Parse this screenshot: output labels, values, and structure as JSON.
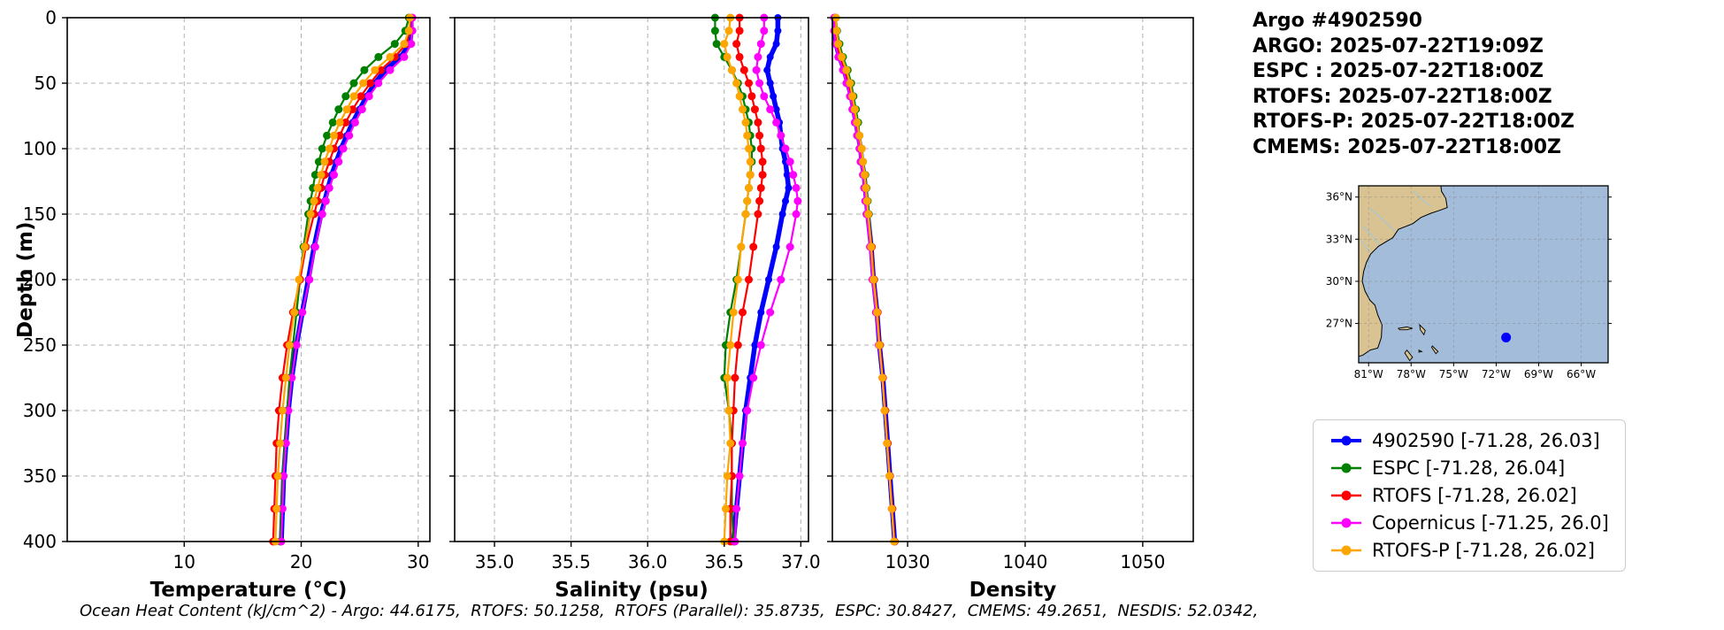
{
  "header": {
    "title": "Argo #4902590",
    "lines": [
      "ARGO: 2025-07-22T19:09Z",
      "ESPC : 2025-07-22T18:00Z",
      "RTOFS: 2025-07-22T18:00Z",
      "RTOFS-P: 2025-07-22T18:00Z",
      "CMEMS: 2025-07-22T18:00Z"
    ]
  },
  "footer": {
    "text": "Ocean Heat Content (kJ/cm^2) - Argo: 44.6175,  RTOFS: 50.1258,  RTOFS (Parallel): 35.8735,  ESPC: 30.8427,  CMEMS: 49.2651,  NESDIS: 52.0342,"
  },
  "map": {
    "extent": {
      "lon_min": -81.7,
      "lon_max": -64.1,
      "lat_min": 24.2,
      "lat_max": 36.8
    },
    "lat_tick_values": [
      36,
      33,
      30,
      27
    ],
    "lat_tick_labels": [
      "36°N",
      "33°N",
      "30°N",
      "27°N"
    ],
    "lon_tick_values": [
      -81,
      -78,
      -75,
      -72,
      -69,
      -66
    ],
    "lon_tick_labels": [
      "81°W",
      "78°W",
      "75°W",
      "72°W",
      "69°W",
      "66°W"
    ],
    "marker": {
      "lon": -71.3,
      "lat": 26.0,
      "color": "#0000ff"
    },
    "ocean_color": "#a2bcd9",
    "land_color": "#d9c392"
  },
  "chart_data": {
    "type": "line",
    "title": "",
    "grid": true,
    "ylabel": "Depth (m)",
    "ylim": [
      0,
      400
    ],
    "y_axis_inverted": true,
    "yticks": [
      0,
      50,
      100,
      150,
      200,
      250,
      300,
      350,
      400
    ],
    "ytick_labels": [
      "0",
      "50",
      "100",
      "150",
      "200",
      "250",
      "300",
      "350",
      "400"
    ],
    "depths": [
      0,
      10,
      20,
      30,
      40,
      50,
      60,
      70,
      80,
      90,
      100,
      110,
      120,
      130,
      140,
      150,
      175,
      200,
      225,
      250,
      275,
      300,
      325,
      350,
      375,
      400
    ],
    "panels": [
      {
        "field": "temperature",
        "xlabel": "Temperature (°C)",
        "xlim": [
          0,
          31
        ],
        "xticks": [
          10,
          20,
          30
        ],
        "xtick_labels": [
          "10",
          "20",
          "30"
        ]
      },
      {
        "field": "salinity",
        "xlabel": "Salinity (psu)",
        "xlim": [
          34.74,
          37.05
        ],
        "xticks": [
          35.0,
          35.5,
          36.0,
          36.5,
          37.0
        ],
        "xtick_labels": [
          "35.0",
          "35.5",
          "36.0",
          "36.5",
          "37.0"
        ]
      },
      {
        "field": "density",
        "xlabel": "Density",
        "xlim": [
          1023.6,
          1054.3
        ],
        "xticks": [
          1030,
          1040,
          1050
        ],
        "xtick_labels": [
          "1030",
          "1040",
          "1050"
        ]
      }
    ],
    "series": [
      {
        "name": "4902590",
        "legend_label": "4902590 [-71.28, 26.03]",
        "color": "#0000ff",
        "linewidth": 5.5,
        "marker_r": 4,
        "temperature": [
          29.4,
          29.4,
          29.3,
          28.5,
          27.2,
          26.3,
          25.6,
          25.0,
          24.4,
          23.9,
          23.4,
          23.0,
          22.6,
          22.3,
          22.0,
          21.7,
          21.1,
          20.6,
          20.1,
          19.6,
          19.2,
          18.9,
          18.7,
          18.5,
          18.4,
          18.3
        ],
        "salinity": [
          36.85,
          36.85,
          36.84,
          36.8,
          36.78,
          36.8,
          36.82,
          36.84,
          36.86,
          36.87,
          36.88,
          36.9,
          36.91,
          36.92,
          36.9,
          36.88,
          36.84,
          36.79,
          36.74,
          36.7,
          36.67,
          36.64,
          36.62,
          36.6,
          36.58,
          36.56
        ],
        "density": [
          1023.8,
          1023.8,
          1023.9,
          1024.2,
          1024.6,
          1024.9,
          1025.2,
          1025.4,
          1025.6,
          1025.8,
          1026.0,
          1026.1,
          1026.3,
          1026.4,
          1026.5,
          1026.6,
          1026.9,
          1027.1,
          1027.4,
          1027.6,
          1027.9,
          1028.1,
          1028.3,
          1028.5,
          1028.7,
          1028.9
        ]
      },
      {
        "name": "ESPC",
        "legend_label": "ESPC [-71.28, 26.04]",
        "color": "#008000",
        "linewidth": 2.2,
        "marker_r": 4.5,
        "temperature": [
          29.2,
          28.9,
          28.0,
          26.6,
          25.4,
          24.5,
          23.8,
          23.2,
          22.7,
          22.2,
          21.8,
          21.5,
          21.2,
          21.0,
          20.8,
          20.6,
          20.2,
          19.9,
          19.6,
          19.3,
          19.0,
          18.8,
          18.6,
          18.4,
          18.3,
          18.2
        ],
        "salinity": [
          36.44,
          36.44,
          36.45,
          36.5,
          36.55,
          36.59,
          36.62,
          36.64,
          36.66,
          36.67,
          36.68,
          36.68,
          36.67,
          36.66,
          36.65,
          36.64,
          36.61,
          36.58,
          36.54,
          36.51,
          36.5,
          36.53,
          36.55,
          36.55,
          36.55,
          36.56
        ],
        "density": [
          1023.9,
          1024.0,
          1024.2,
          1024.5,
          1024.9,
          1025.2,
          1025.4,
          1025.6,
          1025.8,
          1025.9,
          1026.1,
          1026.2,
          1026.4,
          1026.5,
          1026.6,
          1026.7,
          1026.95,
          1027.15,
          1027.4,
          1027.65,
          1027.9,
          1028.1,
          1028.3,
          1028.5,
          1028.7,
          1028.9
        ]
      },
      {
        "name": "RTOFS",
        "legend_label": "RTOFS [-71.28, 26.02]",
        "color": "#ff0000",
        "linewidth": 2.2,
        "marker_r": 4.5,
        "temperature": [
          29.3,
          29.3,
          29.0,
          28.0,
          26.8,
          25.9,
          25.1,
          24.4,
          23.8,
          23.3,
          22.8,
          22.4,
          22.0,
          21.7,
          21.4,
          21.1,
          20.4,
          19.9,
          19.3,
          18.8,
          18.4,
          18.1,
          17.9,
          17.8,
          17.7,
          17.6
        ],
        "salinity": [
          36.6,
          36.6,
          36.58,
          36.6,
          36.63,
          36.66,
          36.68,
          36.7,
          36.72,
          36.73,
          36.74,
          36.75,
          36.75,
          36.74,
          36.73,
          36.72,
          36.69,
          36.66,
          36.62,
          36.59,
          36.57,
          36.56,
          36.55,
          36.55,
          36.54,
          36.54
        ],
        "density": [
          1023.85,
          1023.85,
          1023.95,
          1024.3,
          1024.7,
          1025.0,
          1025.25,
          1025.45,
          1025.65,
          1025.85,
          1026.05,
          1026.15,
          1026.35,
          1026.45,
          1026.55,
          1026.65,
          1026.95,
          1027.15,
          1027.45,
          1027.65,
          1027.9,
          1028.1,
          1028.3,
          1028.5,
          1028.7,
          1028.9
        ]
      },
      {
        "name": "Copernicus",
        "legend_label": "Copernicus [-71.25, 26.0]",
        "color": "#ff00ff",
        "linewidth": 2.2,
        "marker_r": 4.5,
        "temperature": [
          29.5,
          29.5,
          29.4,
          28.8,
          27.6,
          26.6,
          25.8,
          25.2,
          24.6,
          24.1,
          23.6,
          23.2,
          22.8,
          22.4,
          22.1,
          21.8,
          21.2,
          20.7,
          20.1,
          19.6,
          19.2,
          18.9,
          18.7,
          18.5,
          18.4,
          18.3
        ],
        "salinity": [
          36.76,
          36.76,
          36.74,
          36.72,
          36.71,
          36.73,
          36.76,
          36.8,
          36.84,
          36.87,
          36.9,
          36.93,
          36.95,
          36.97,
          36.98,
          36.97,
          36.93,
          36.87,
          36.8,
          36.74,
          36.69,
          36.65,
          36.62,
          36.6,
          36.58,
          36.57
        ],
        "density": [
          1023.75,
          1023.75,
          1023.85,
          1024.1,
          1024.5,
          1024.8,
          1025.1,
          1025.3,
          1025.5,
          1025.7,
          1025.9,
          1026.0,
          1026.2,
          1026.3,
          1026.4,
          1026.5,
          1026.8,
          1027.0,
          1027.3,
          1027.55,
          1027.85,
          1028.05,
          1028.25,
          1028.45,
          1028.65,
          1028.85
        ]
      },
      {
        "name": "RTOFS-P",
        "legend_label": "RTOFS-P [-71.28, 26.02]",
        "color": "#ffa500",
        "linewidth": 2.2,
        "marker_r": 4.5,
        "temperature": [
          29.3,
          29.2,
          28.8,
          27.6,
          26.3,
          25.3,
          24.5,
          23.9,
          23.3,
          22.8,
          22.4,
          22.0,
          21.7,
          21.4,
          21.1,
          20.8,
          20.3,
          19.8,
          19.4,
          19.0,
          18.7,
          18.4,
          18.2,
          18.0,
          17.9,
          17.8
        ],
        "salinity": [
          36.54,
          36.53,
          36.5,
          36.52,
          36.55,
          36.58,
          36.6,
          36.62,
          36.64,
          36.65,
          36.66,
          36.67,
          36.67,
          36.66,
          36.65,
          36.64,
          36.61,
          36.59,
          36.56,
          36.54,
          36.52,
          36.53,
          36.54,
          36.52,
          36.51,
          36.5
        ],
        "density": [
          1023.9,
          1023.95,
          1024.1,
          1024.4,
          1024.8,
          1025.1,
          1025.3,
          1025.5,
          1025.7,
          1025.9,
          1026.1,
          1026.2,
          1026.35,
          1026.45,
          1026.55,
          1026.65,
          1026.9,
          1027.1,
          1027.4,
          1027.6,
          1027.85,
          1028.05,
          1028.25,
          1028.45,
          1028.65,
          1028.85
        ]
      }
    ]
  }
}
